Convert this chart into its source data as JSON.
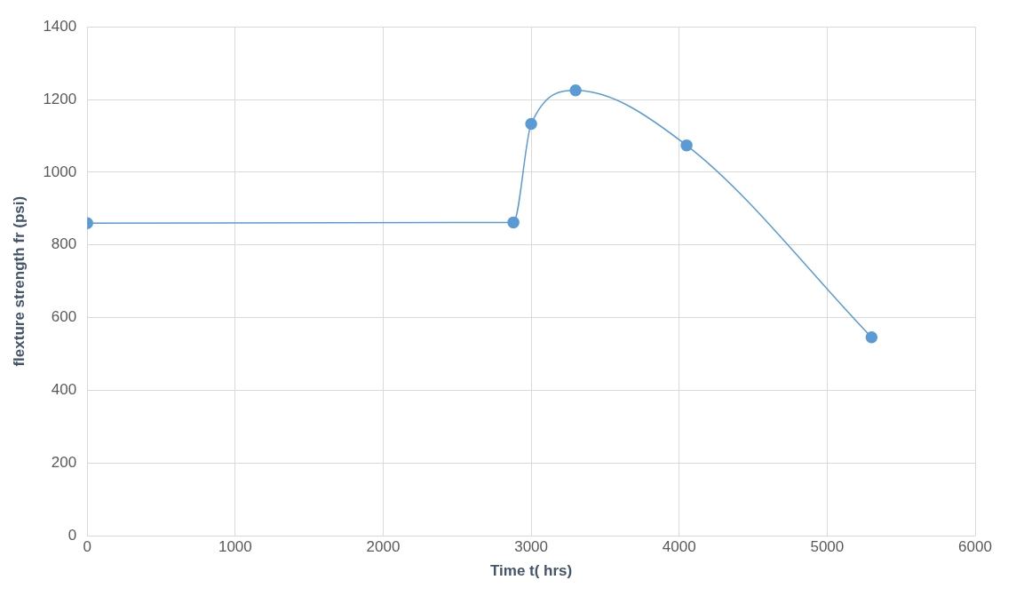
{
  "chart_data": {
    "type": "line",
    "xlabel": "Time t( hrs)",
    "ylabel": "flexture strength fr (psi)",
    "x": [
      0,
      2880,
      3000,
      3300,
      4050,
      5300
    ],
    "series": [
      {
        "color": "#5b9bd5",
        "values": [
          860,
          862,
          1133,
          1225,
          1074,
          546
        ]
      }
    ],
    "xlim": [
      0,
      6000
    ],
    "xticks": [
      0,
      1000,
      2000,
      3000,
      4000,
      5000,
      6000
    ],
    "ylim": [
      0,
      1400
    ],
    "yticks": [
      0,
      200,
      400,
      600,
      800,
      1000,
      1200,
      1400
    ],
    "grid": true,
    "legend": false,
    "marker": "circle",
    "line_style": "solid"
  }
}
